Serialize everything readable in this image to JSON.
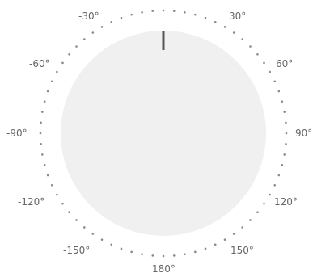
{
  "dial": {
    "value_degrees": 0,
    "labels": [
      {
        "key": "neg30",
        "text": "-30°"
      },
      {
        "key": "pos30",
        "text": "30°"
      },
      {
        "key": "neg60",
        "text": "-60°"
      },
      {
        "key": "pos60",
        "text": "60°"
      },
      {
        "key": "neg90",
        "text": "-90°"
      },
      {
        "key": "pos90",
        "text": "90°"
      },
      {
        "key": "neg120",
        "text": "-120°"
      },
      {
        "key": "pos120",
        "text": "120°"
      },
      {
        "key": "neg150",
        "text": "-150°"
      },
      {
        "key": "pos150",
        "text": "150°"
      },
      {
        "key": "d180",
        "text": "180°"
      }
    ],
    "colors": {
      "face": "#f0f0f0",
      "needle": "#555555",
      "dots": "#8a8a8a",
      "labels": "#666666"
    }
  }
}
